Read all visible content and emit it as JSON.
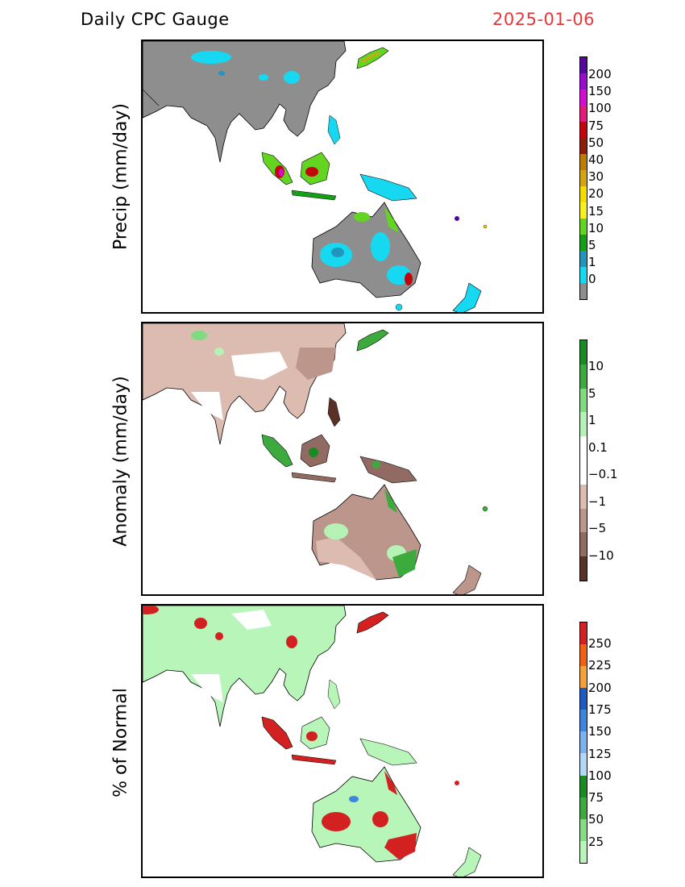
{
  "header": {
    "title": "Daily CPC Gauge",
    "date": "2025-01-06"
  },
  "panels": [
    {
      "ylabel": "Precip (mm/day)",
      "ticks": [
        "200",
        "150",
        "100",
        "75",
        "50",
        "40",
        "30",
        "20",
        "15",
        "10",
        "5",
        "1",
        "0"
      ],
      "colors": [
        "#55089c",
        "#9b0ccf",
        "#d30dd1",
        "#e51b7c",
        "#c3060b",
        "#8e1c0b",
        "#bc7d05",
        "#d3a512",
        "#f3dc00",
        "#f6f21d",
        "#63d520",
        "#13a016",
        "#2196bd",
        "#16d9f1",
        "#8e8e8e"
      ]
    },
    {
      "ylabel": "Anomaly (mm/day)",
      "ticks": [
        "10",
        "5",
        "1",
        "0.1",
        "−0.1",
        "−1",
        "−5",
        "−10"
      ],
      "colors": [
        "#1a8a24",
        "#3caa3c",
        "#80da80",
        "#b6f2b6",
        "#ffffff",
        "#ffffff",
        "#dcbcb1",
        "#bc958b",
        "#916a62",
        "#5a3129"
      ]
    },
    {
      "ylabel": "% of Normal",
      "ticks": [
        "250",
        "225",
        "200",
        "175",
        "150",
        "125",
        "100",
        "75",
        "50",
        "25"
      ],
      "colors": [
        "#d32121",
        "#f26012",
        "#f4a137",
        "#1c5bbf",
        "#3e86dd",
        "#7cb3ee",
        "#b2d7f7",
        "#1a8a24",
        "#3caa3c",
        "#86dc86",
        "#b8f5b8"
      ]
    }
  ]
}
